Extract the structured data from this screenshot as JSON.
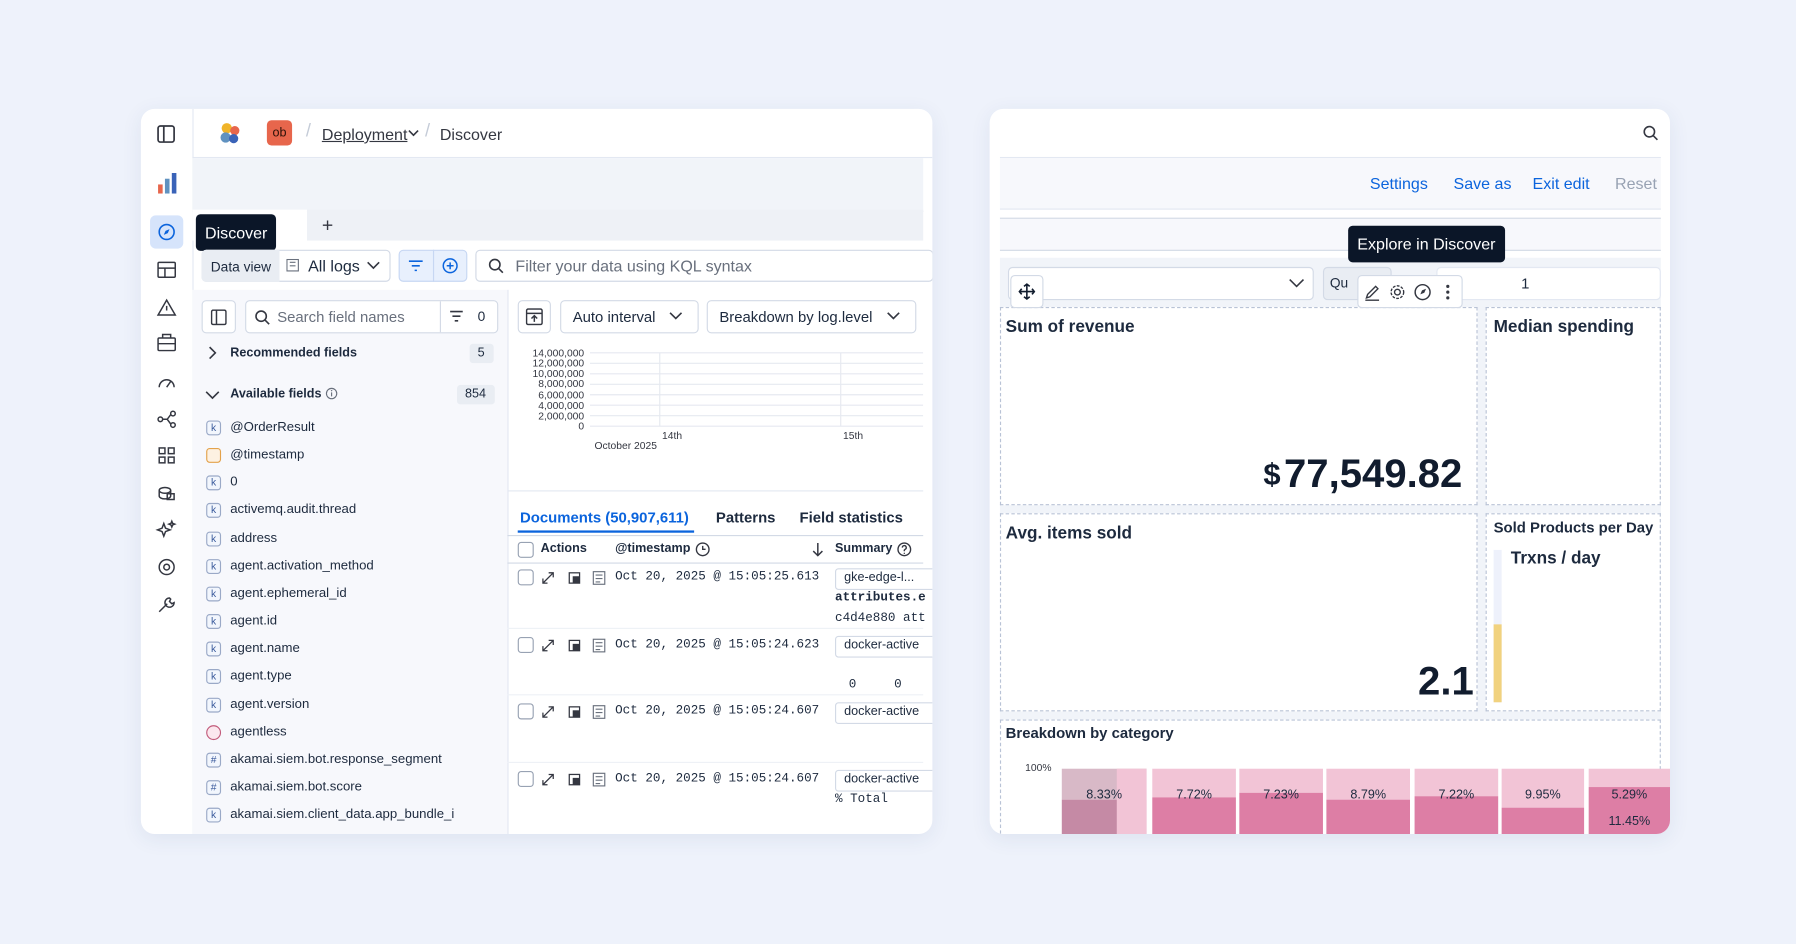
{
  "discover": {
    "breadcrumb": {
      "avatar": "ob",
      "deployment": "Deployment",
      "current": "Discover"
    },
    "nav_tooltip": "Discover",
    "data_view_label": "Data view",
    "data_view": "All logs",
    "query_placeholder": "Filter your data using KQL syntax",
    "field_search_placeholder": "Search field names",
    "field_filter_count": "0",
    "recommended": {
      "label": "Recommended fields",
      "count": "5"
    },
    "available": {
      "label": "Available fields",
      "count": "854"
    },
    "fields": [
      {
        "kind": "keyword",
        "icon": "k",
        "name": "@OrderResult"
      },
      {
        "kind": "date",
        "name": "@timestamp"
      },
      {
        "kind": "keyword",
        "icon": "k",
        "name": "0"
      },
      {
        "kind": "keyword",
        "icon": "k",
        "name": "activemq.audit.thread"
      },
      {
        "kind": "keyword",
        "icon": "k",
        "name": "address"
      },
      {
        "kind": "keyword",
        "icon": "k",
        "name": "agent.activation_method"
      },
      {
        "kind": "keyword",
        "icon": "k",
        "name": "agent.ephemeral_id"
      },
      {
        "kind": "keyword",
        "icon": "k",
        "name": "agent.id"
      },
      {
        "kind": "keyword",
        "icon": "k",
        "name": "agent.name"
      },
      {
        "kind": "keyword",
        "icon": "k",
        "name": "agent.type"
      },
      {
        "kind": "keyword",
        "icon": "k",
        "name": "agent.version"
      },
      {
        "kind": "boolean",
        "name": "agentless"
      },
      {
        "kind": "number",
        "icon": "#",
        "name": "akamai.siem.bot.response_segment"
      },
      {
        "kind": "number",
        "icon": "#",
        "name": "akamai.siem.bot.score"
      },
      {
        "kind": "keyword",
        "icon": "k",
        "name": "akamai.siem.client_data.app_bundle_i"
      }
    ],
    "histogram": {
      "interval": "Auto interval",
      "breakdown": "Breakdown by log.level",
      "y_labels": [
        "14,000,000",
        "12,000,000",
        "10,000,000",
        "8,000,000",
        "6,000,000",
        "4,000,000",
        "2,000,000",
        "0"
      ],
      "x_labels": [
        "14th",
        "15th"
      ],
      "x_caption": "October 2025"
    },
    "tabs": [
      "Documents (50,907,611)",
      "Patterns",
      "Field statistics"
    ],
    "columns": [
      "Actions",
      "@timestamp",
      "Summary"
    ],
    "rows": [
      {
        "timestamp": "Oct 20, 2025 @ 15:05:25.613",
        "summary": [
          "gke-edge-l...",
          "attributes.e",
          "c4d4e880 att"
        ]
      },
      {
        "timestamp": "Oct 20, 2025 @ 15:05:24.623",
        "summary": [
          "docker-active",
          "0     0"
        ]
      },
      {
        "timestamp": "Oct 20, 2025 @ 15:05:24.607",
        "summary": [
          "docker-active"
        ]
      },
      {
        "timestamp": "Oct 20, 2025 @ 15:05:24.607",
        "summary": [
          "docker-active",
          "% Total"
        ]
      }
    ]
  },
  "dashboard": {
    "actions": [
      "Settings",
      "Save as",
      "Exit edit",
      "Reset"
    ],
    "tooltip": "Explore in Discover",
    "control_partial": "Qu",
    "control_value": "1",
    "panels": {
      "revenue": {
        "title": "Sum of revenue",
        "currency": "$",
        "value": "77,549.82"
      },
      "median": {
        "title": "Median spending"
      },
      "items": {
        "title": "Avg. items sold",
        "value": "2.1"
      },
      "sold": {
        "title": "Sold Products per Day",
        "subtitle": "Trxns / day"
      },
      "breakdown": {
        "title": "Breakdown by category",
        "axis_label": "100%",
        "labels": [
          "8.33%",
          "7.72%",
          "7.23%",
          "8.79%",
          "7.22%",
          "9.95%",
          "5.29%"
        ],
        "cut_label": "11.45%"
      }
    }
  }
}
